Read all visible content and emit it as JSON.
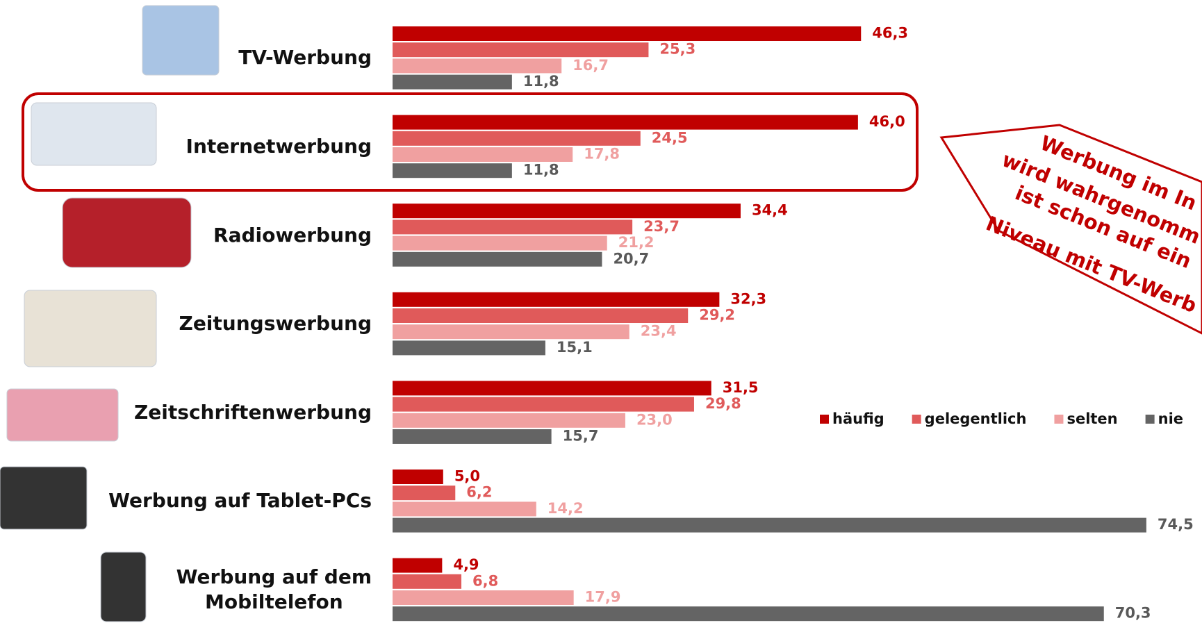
{
  "chart_data": {
    "type": "bar",
    "orientation": "horizontal",
    "categories": [
      "TV-Werbung",
      "Internetwerbung",
      "Radiowerbung",
      "Zeitungswerbung",
      "Zeitschriftenwerbung",
      "Werbung auf Tablet-PCs",
      "Werbung auf dem\nMobiltelefon"
    ],
    "series": [
      {
        "name": "häufig",
        "color": "#c00000",
        "label_color": "#c00000",
        "values": [
          46.3,
          46.0,
          34.4,
          32.3,
          31.5,
          5.0,
          4.9
        ],
        "value_labels": [
          "46,3",
          "46,0",
          "34,4",
          "32,3",
          "31,5",
          "5,0",
          "4,9"
        ]
      },
      {
        "name": "gelegentlich",
        "color": "#e05a5a",
        "label_color": "#e05a5a",
        "values": [
          25.3,
          24.5,
          23.7,
          29.2,
          29.8,
          6.2,
          6.8
        ],
        "value_labels": [
          "25,3",
          "24,5",
          "23,7",
          "29,2",
          "29,8",
          "6,2",
          "6,8"
        ]
      },
      {
        "name": "selten",
        "color": "#f0a0a0",
        "label_color": "#f0a0a0",
        "values": [
          16.7,
          17.8,
          21.2,
          23.4,
          23.0,
          14.2,
          17.9
        ],
        "value_labels": [
          "16,7",
          "17,8",
          "21,2",
          "23,4",
          "23,0",
          "14,2",
          "17,9"
        ]
      },
      {
        "name": "nie",
        "color": "#646464",
        "label_color": "#595959",
        "values": [
          11.8,
          11.8,
          20.7,
          15.1,
          15.7,
          74.5,
          70.3
        ],
        "value_labels": [
          "11,8",
          "11,8",
          "20,7",
          "15,1",
          "15,7",
          "74,5",
          "70,3"
        ]
      }
    ],
    "xlim": [
      0,
      80
    ],
    "highlight_category": 1,
    "annotation_lines": [
      "Werbung im In",
      "wird wahrgenomm",
      "ist schon auf ein",
      "Niveau mit TV-Werb"
    ]
  }
}
